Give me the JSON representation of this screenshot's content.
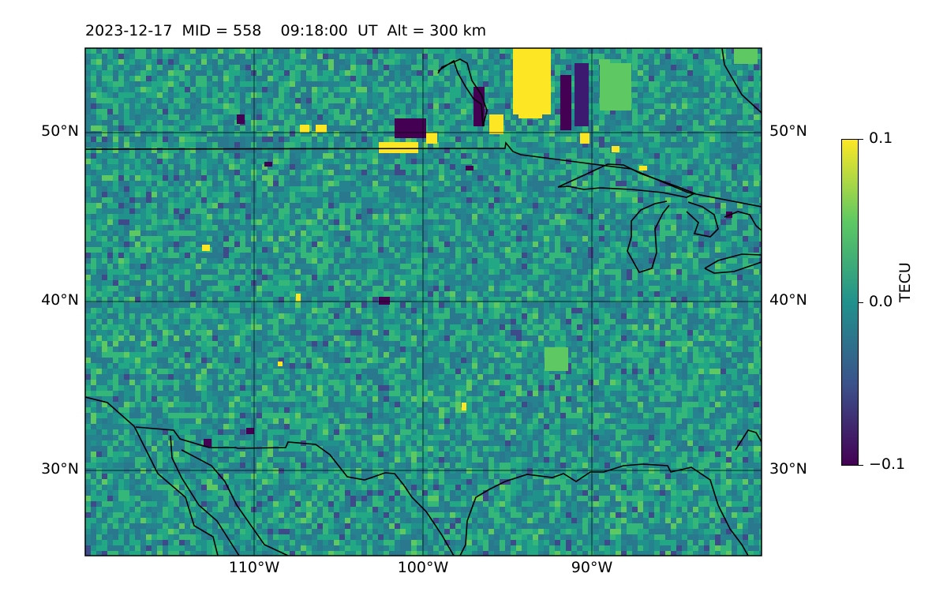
{
  "title": "2023-12-17  MID = 558    09:18:00  UT  Alt = 300 km",
  "map": {
    "lat_labels": [
      "50°N",
      "40°N",
      "30°N"
    ],
    "lat_values": [
      50,
      40,
      30
    ],
    "lon_labels": [
      "110°W",
      "100°W",
      "90°W"
    ],
    "lon_values": [
      -110,
      -100,
      -90
    ],
    "lon_range": [
      -120,
      -80
    ],
    "lat_range": [
      25,
      55
    ]
  },
  "colorbar": {
    "title": "TECU",
    "ticks": [
      "0.1",
      "0.0",
      "−0.1"
    ],
    "min": -0.1,
    "max": 0.1,
    "colormap": [
      "#440154",
      "#3b528b",
      "#21918c",
      "#5ec962",
      "#fde725"
    ]
  }
}
